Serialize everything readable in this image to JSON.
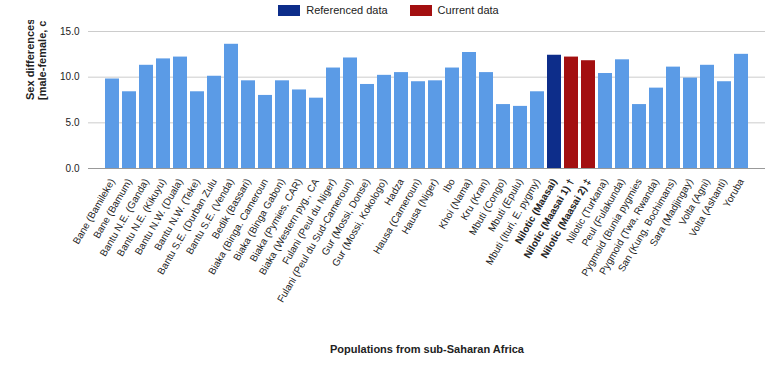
{
  "chart_data": {
    "type": "bar",
    "x_label": "Populations from sub-Saharan Africa",
    "y_label": "Sex differences in body height\n[male-female, cm]",
    "categories": [
      "Bane (Bamileke)",
      "Bane (Bamum)",
      "Bantu N.E. (Ganda)",
      "Bantu N.E. (Kikuyu)",
      "Bantu N.W. (Duala)",
      "Bantu N.W. (Teke)",
      "Bantu S.E. (Durban Zulu",
      "Bantu S.E. (Venda)",
      "Bedik (Bassari)",
      "Biaka (Binga. Cameroun",
      "Biaka (Binga Gabon)",
      "Biaka (Pymies, CAR)",
      "Biaka (Western pyg., CA",
      "Fulani (Peul du Niger)",
      "Fulani (Peul du Sud-Cameroun)",
      "Gur (Mossi, Donse)",
      "Gur (Mossi, Kokologo)",
      "Hadza",
      "Hausa (Cameroun)",
      "Hausa (Niger)",
      "Ibo",
      "Khoi (Nama)",
      "Kru (Kran)",
      "Mbuti (Congo)",
      "Mbuti (Epulu)",
      "Mbuti (Ituri, E. pygmy)",
      "Nilotic (Maasai)",
      "Nilotic (Maasai 1) †",
      "Nilotic (Maasai 2) ‡",
      "Nilotic (Turkana)",
      "Peul (Fulakunda)",
      "Pygmoid (Bunia pygmies",
      "Pygmoid (Twa, Rwanda)",
      "San (Kung, Bochimans)",
      "Sara (Madjingay)",
      "Volta (Agni)",
      "Volta (Ashanti)",
      "Yoruba"
    ],
    "values": [
      9.8,
      8.4,
      11.3,
      12.0,
      12.2,
      8.4,
      10.1,
      13.6,
      9.6,
      8.0,
      9.6,
      8.6,
      7.7,
      11.0,
      12.1,
      9.2,
      10.2,
      10.5,
      9.5,
      9.6,
      11.0,
      12.7,
      10.5,
      7.0,
      6.8,
      8.4,
      12.4,
      12.2,
      11.8,
      10.4,
      11.9,
      7.0,
      8.8,
      11.1,
      9.9,
      11.3,
      9.5,
      12.5
    ],
    "colors": [
      "#5b9be6",
      "#5b9be6",
      "#5b9be6",
      "#5b9be6",
      "#5b9be6",
      "#5b9be6",
      "#5b9be6",
      "#5b9be6",
      "#5b9be6",
      "#5b9be6",
      "#5b9be6",
      "#5b9be6",
      "#5b9be6",
      "#5b9be6",
      "#5b9be6",
      "#5b9be6",
      "#5b9be6",
      "#5b9be6",
      "#5b9be6",
      "#5b9be6",
      "#5b9be6",
      "#5b9be6",
      "#5b9be6",
      "#5b9be6",
      "#5b9be6",
      "#5b9be6",
      "#0d2d8a",
      "#a30f10",
      "#a30f10",
      "#5b9be6",
      "#5b9be6",
      "#5b9be6",
      "#5b9be6",
      "#5b9be6",
      "#5b9be6",
      "#5b9be6",
      "#5b9be6",
      "#5b9be6"
    ],
    "legend_entries": [
      {
        "name": "Referenced data",
        "color": "#0d2d8a"
      },
      {
        "name": "Current data",
        "color": "#a30f10"
      }
    ],
    "legend": "top",
    "ylim": [
      0,
      15
    ],
    "yticks": [
      {
        "value": 0,
        "label": "0.0"
      },
      {
        "value": 5,
        "label": "5.0"
      },
      {
        "value": 10,
        "label": "10.0"
      },
      {
        "value": 15,
        "label": "15.0"
      }
    ],
    "grid": true
  }
}
